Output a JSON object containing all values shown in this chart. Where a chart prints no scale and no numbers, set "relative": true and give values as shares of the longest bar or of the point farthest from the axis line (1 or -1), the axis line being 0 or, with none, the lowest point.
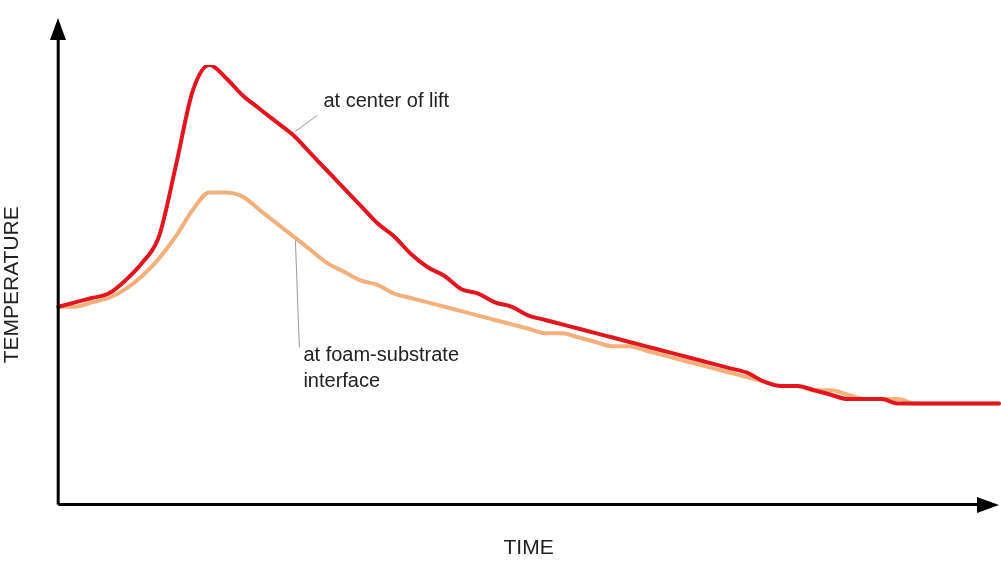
{
  "chart_data": {
    "type": "line",
    "relative": true,
    "xlabel": "TIME",
    "ylabel": "TEMPERATURE",
    "legend": false,
    "grid": false,
    "marker": "none",
    "line_style": "solid",
    "categories": [
      null,
      null,
      null,
      null,
      null,
      null,
      null,
      null,
      null,
      null,
      null,
      null,
      null,
      null,
      null,
      null,
      null,
      null,
      null,
      null,
      null,
      null,
      null,
      null,
      null,
      null,
      null,
      null,
      null,
      null,
      null,
      null,
      null,
      null,
      null,
      null,
      null,
      null,
      null,
      null,
      null,
      null,
      null,
      null,
      null,
      null,
      null,
      null,
      null,
      null,
      null,
      null,
      null,
      null,
      null,
      null,
      null
    ],
    "series": [
      {
        "name": "at center of lift",
        "color": "#e3161e",
        "values": [
          0.45,
          0.46,
          0.47,
          0.48,
          0.51,
          0.55,
          0.61,
          0.77,
          0.94,
          1,
          0.97,
          0.93,
          0.9,
          0.87,
          0.84,
          0.8,
          0.76,
          0.72,
          0.68,
          0.64,
          0.61,
          0.57,
          0.54,
          0.52,
          0.49,
          0.48,
          0.46,
          0.45,
          0.43,
          0.42,
          0.41,
          0.4,
          0.39,
          0.38,
          0.37,
          0.36,
          0.35,
          0.34,
          0.33,
          0.32,
          0.31,
          0.3,
          0.28,
          0.27,
          0.27,
          0.26,
          0.25,
          0.24,
          0.24,
          0.24,
          0.23,
          0.23,
          0.23,
          0.23,
          0.23,
          0.23,
          0.23
        ]
      },
      {
        "name": "at foam-substrate interface",
        "color": "#f4b07a",
        "values": [
          0.45,
          0.45,
          0.46,
          0.47,
          0.49,
          0.52,
          0.56,
          0.61,
          0.67,
          0.71,
          0.71,
          0.7,
          0.67,
          0.64,
          0.61,
          0.58,
          0.55,
          0.53,
          0.51,
          0.5,
          0.48,
          0.47,
          0.46,
          0.45,
          0.44,
          0.43,
          0.42,
          0.41,
          0.4,
          0.39,
          0.39,
          0.38,
          0.37,
          0.36,
          0.36,
          0.35,
          0.34,
          0.33,
          0.32,
          0.31,
          0.3,
          0.29,
          0.28,
          0.27,
          0.27,
          0.26,
          0.26,
          0.25,
          0.24,
          0.24,
          0.24,
          0.23,
          0.23,
          0.23,
          0.23,
          0.23,
          0.23
        ]
      }
    ]
  }
}
